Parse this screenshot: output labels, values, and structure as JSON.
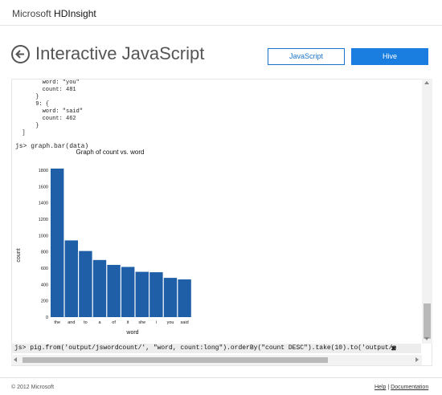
{
  "brand": {
    "company": "Microsoft",
    "product": "HDInsight"
  },
  "header": {
    "title": "Interactive JavaScript",
    "js_button": "JavaScript",
    "hive_button": "Hive"
  },
  "console": {
    "output_lines": [
      "        word: \"you\"",
      "        count: 481",
      "      }",
      "      9: {",
      "        word: \"said\"",
      "        count: 462",
      "      }",
      "  ]"
    ],
    "prompt": "js> graph.bar(data)",
    "command_input": "js> pig.from('output/jswordcount/', \"word, count:long\").orderBy(\"count DESC\").take(10).to('output/p",
    "clear_symbol": "✖"
  },
  "chart_data": {
    "type": "bar",
    "title": "Graph of count vs. word",
    "xlabel": "word",
    "ylabel": "count",
    "categories": [
      "the",
      "and",
      "to",
      "a",
      "of",
      "it",
      "she",
      "i",
      "you",
      "said"
    ],
    "values": [
      1820,
      940,
      810,
      700,
      640,
      615,
      555,
      550,
      481,
      462
    ],
    "ylim": [
      0,
      1800
    ],
    "yticks": [
      0,
      200,
      400,
      600,
      800,
      1000,
      1200,
      1400,
      1600,
      1800
    ],
    "bar_color": "#1f5fa8"
  },
  "footer": {
    "copyright": "© 2012 Microsoft",
    "help": "Help",
    "separator": "|",
    "documentation": "Documentation"
  },
  "colors": {
    "accent": "#1a7ee0"
  }
}
